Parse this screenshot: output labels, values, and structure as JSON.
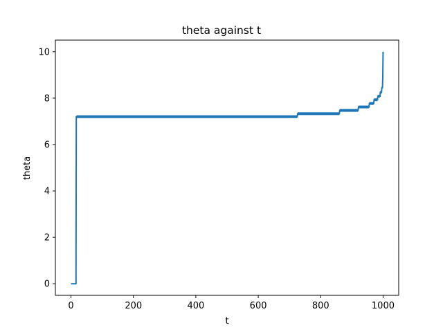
{
  "chart_data": {
    "type": "line",
    "title": "theta against t",
    "xlabel": "t",
    "ylabel": "theta",
    "xlim": [
      -50,
      1050
    ],
    "ylim": [
      -0.5,
      10.5
    ],
    "xticks": [
      0,
      200,
      400,
      600,
      800,
      1000
    ],
    "yticks": [
      0,
      2,
      4,
      6,
      8,
      10
    ],
    "xtick_labels": [
      "0",
      "200",
      "400",
      "600",
      "800",
      "1000"
    ],
    "ytick_labels": [
      "0",
      "2",
      "4",
      "6",
      "8",
      "10"
    ],
    "grid": false,
    "legend": "none",
    "series_color": "#1f77b4",
    "series": [
      {
        "x": [
          0,
          16,
          17,
          725,
          726,
          860,
          861,
          920,
          921,
          955,
          956,
          970,
          971,
          982,
          983,
          990,
          991,
          995,
          996,
          998,
          999,
          1000
        ],
        "y": [
          0,
          0,
          7.2,
          7.2,
          7.33,
          7.33,
          7.47,
          7.47,
          7.62,
          7.62,
          7.77,
          7.77,
          7.93,
          7.93,
          8.08,
          8.08,
          8.25,
          8.25,
          8.45,
          8.45,
          8.9,
          10
        ],
        "band": [
          {
            "x0": 18,
            "x1": 725,
            "y0": 7.14,
            "y1": 7.26
          },
          {
            "x0": 726,
            "x1": 860,
            "y0": 7.27,
            "y1": 7.39
          },
          {
            "x0": 861,
            "x1": 920,
            "y0": 7.41,
            "y1": 7.53
          },
          {
            "x0": 921,
            "x1": 955,
            "y0": 7.56,
            "y1": 7.68
          },
          {
            "x0": 956,
            "x1": 970,
            "y0": 7.71,
            "y1": 7.83
          },
          {
            "x0": 971,
            "x1": 982,
            "y0": 7.87,
            "y1": 7.99
          },
          {
            "x0": 983,
            "x1": 990,
            "y0": 8.02,
            "y1": 8.14
          },
          {
            "x0": 991,
            "x1": 995,
            "y0": 8.19,
            "y1": 8.31
          }
        ]
      }
    ]
  }
}
